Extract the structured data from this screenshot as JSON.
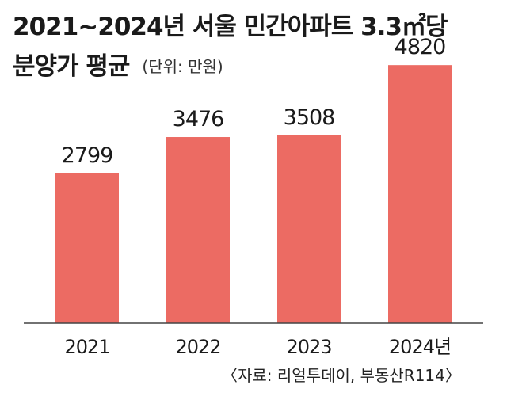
{
  "title": {
    "line1": "2021~2024년 서울 민간아파트 3.3㎡당",
    "line2": "분양가 평균",
    "unit": "(단위: 만원)"
  },
  "chart_data": {
    "type": "bar",
    "categories": [
      "2021",
      "2022",
      "2023",
      "2024년"
    ],
    "values": [
      2799,
      3476,
      3508,
      4820
    ],
    "ylim": [
      0,
      5000
    ],
    "grid": false,
    "bar_color": "#ec6b63"
  },
  "source": "〈자료: 리얼투데이, 부동산R114〉"
}
